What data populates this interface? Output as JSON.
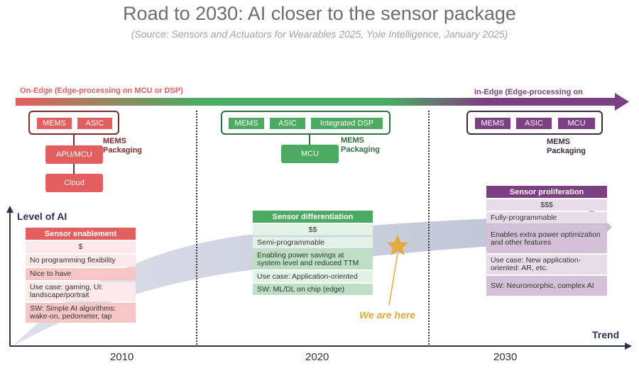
{
  "title": "Road to 2030: AI closer to the sensor package",
  "source": "(Source: Sensors and Actuators for Wearables 2025, Yole Intelligence, January 2025)",
  "top_arrow": {
    "left_label": "On-Edge (Edge-processing on MCU or DSP)",
    "right_label": "In-Edge (Edge-processing on"
  },
  "colors": {
    "red": "#e35f5f",
    "green": "#4daa62",
    "purple": "#7d3f83",
    "yellow": "#e5a93c",
    "axis": "#2a3250"
  },
  "era_2010": {
    "chips": [
      "MEMS",
      "ASIC"
    ],
    "packaging": "MEMS\nPackaging",
    "apu": "APU/MCU",
    "cloud": "Cloud",
    "table": {
      "header": "Sensor enablement",
      "price": "$",
      "rows": [
        "No programming flexibility",
        "Nice to have",
        "Use case: gaming, UI: landscape/portrait",
        "SW: Simple AI algorithms: wake-on, pedometer, tap"
      ]
    },
    "year": "2010"
  },
  "era_2020": {
    "chips": [
      "MEMS",
      "ASIC",
      "Integrated DSP"
    ],
    "packaging": "MEMS\nPackaging",
    "mcu": "MCU",
    "table": {
      "header": "Sensor differentiation",
      "price": "$$",
      "rows": [
        "Semi-programmable",
        "Enabling power savings at system level and reduced TTM",
        "Use case: Application-oriented",
        "SW: ML/DL on chip (edge)"
      ]
    },
    "year": "2020"
  },
  "era_2030": {
    "chips": [
      "MEMS",
      "ASIC",
      "MCU"
    ],
    "packaging": "MEMS\nPackaging",
    "table": {
      "header": "Sensor proliferation",
      "price": "$$$",
      "rows": [
        "Fully-programmable",
        "Enables extra power optimization and other features",
        "Use case: New application-oriented: AR, etc.",
        "SW: Neuromorphic, complex AI"
      ]
    },
    "year": "2030"
  },
  "axis": {
    "y_label": "Level of AI",
    "x_label": "Trend"
  },
  "marker": {
    "label": "We are here",
    "icon": "star-icon"
  }
}
